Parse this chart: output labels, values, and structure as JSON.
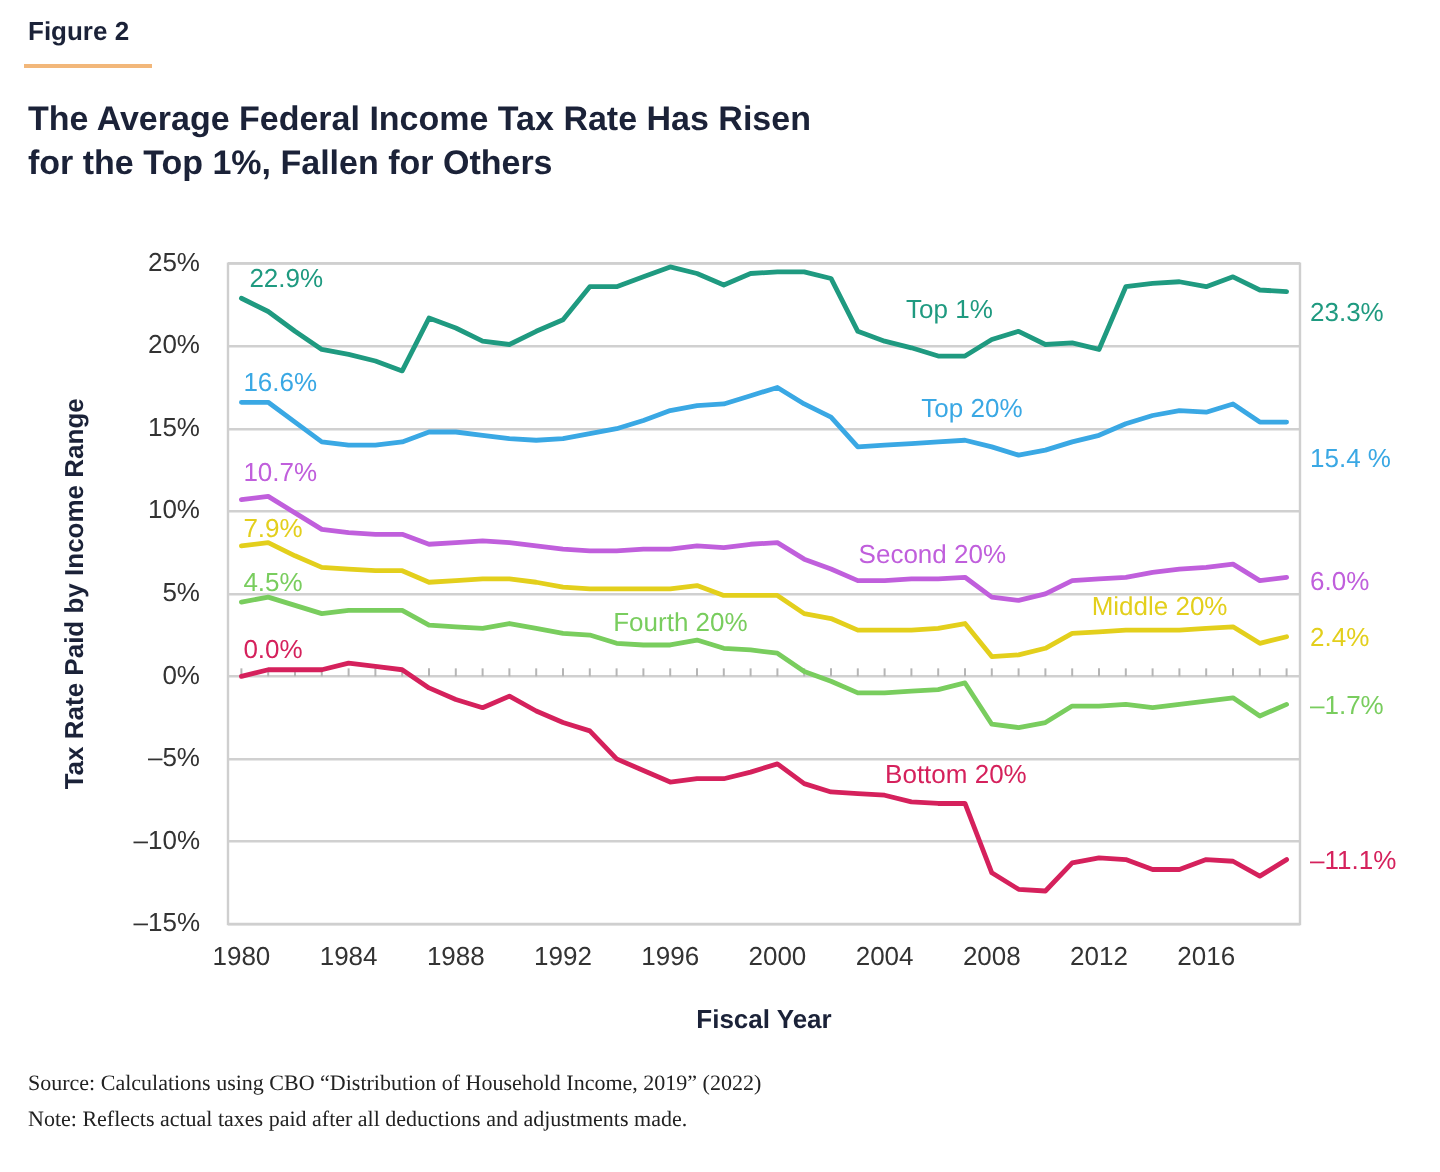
{
  "chart_data": {
    "type": "line",
    "title": "The Average Federal Income Tax Rate Has Risen for the Top 1%, Fallen for Others",
    "xlabel": "Fiscal Year",
    "ylabel": "Tax Rate Paid by Income Range",
    "annotations": [
      "Figure 2",
      "Source: Calculations using CBO “Distribution of Household Income, 2019” (2022)",
      "Note: Reflects actual taxes paid after all deductions and adjustments made."
    ],
    "x": [
      1980,
      1981,
      1982,
      1983,
      1984,
      1985,
      1986,
      1987,
      1988,
      1989,
      1990,
      1991,
      1992,
      1993,
      1994,
      1995,
      1996,
      1997,
      1998,
      1999,
      2000,
      2001,
      2002,
      2003,
      2004,
      2005,
      2006,
      2007,
      2008,
      2009,
      2010,
      2011,
      2012,
      2013,
      2014,
      2015,
      2016,
      2017,
      2018,
      2019
    ],
    "xlim": [
      1979.5,
      2019.5
    ],
    "xticks": [
      1980,
      {
        "value": 1981,
        "label": null
      },
      {
        "value": 1982,
        "label": null
      },
      {
        "value": 1983,
        "label": null
      },
      1984,
      {
        "value": 1985,
        "label": null
      },
      {
        "value": 1986,
        "label": null
      },
      {
        "value": 1987,
        "label": null
      },
      1988,
      {
        "value": 1989,
        "label": null
      },
      {
        "value": 1990,
        "label": null
      },
      {
        "value": 1991,
        "label": null
      },
      1992,
      {
        "value": 1993,
        "label": null
      },
      {
        "value": 1994,
        "label": null
      },
      {
        "value": 1995,
        "label": null
      },
      1996,
      {
        "value": 1997,
        "label": null
      },
      {
        "value": 1998,
        "label": null
      },
      {
        "value": 1999,
        "label": null
      },
      2000,
      {
        "value": 2001,
        "label": null
      },
      {
        "value": 2002,
        "label": null
      },
      {
        "value": 2003,
        "label": null
      },
      2004,
      {
        "value": 2005,
        "label": null
      },
      {
        "value": 2006,
        "label": null
      },
      {
        "value": 2007,
        "label": null
      },
      2008,
      {
        "value": 2009,
        "label": null
      },
      {
        "value": 2010,
        "label": null
      },
      {
        "value": 2011,
        "label": null
      },
      2012,
      {
        "value": 2013,
        "label": null
      },
      {
        "value": 2014,
        "label": null
      },
      {
        "value": 2015,
        "label": null
      },
      2016,
      {
        "value": 2017,
        "label": null
      },
      {
        "value": 2018,
        "label": null
      },
      {
        "value": 2019,
        "label": null
      }
    ],
    "ylim": [
      -15,
      25
    ],
    "yticks": [
      {
        "value": -15,
        "label": "–15%"
      },
      {
        "value": -10,
        "label": "–10%"
      },
      {
        "value": -5,
        "label": "–5%"
      },
      {
        "value": 0,
        "label": "0%"
      },
      {
        "value": 5,
        "label": "5%"
      },
      {
        "value": 10,
        "label": "10%"
      },
      {
        "value": 15,
        "label": "15%"
      },
      {
        "value": 20,
        "label": "20%"
      },
      {
        "value": 25,
        "label": "25%"
      }
    ],
    "grid": "y",
    "legend": false,
    "marker": "none",
    "line_style": "solid",
    "series": [
      {
        "name": "Top 1%",
        "color": "#1f9a80",
        "values": [
          22.9,
          22.1,
          20.9,
          19.8,
          19.5,
          19.1,
          18.5,
          21.7,
          21.1,
          20.3,
          20.1,
          20.9,
          21.6,
          23.6,
          23.6,
          24.2,
          24.8,
          24.4,
          23.7,
          24.4,
          24.5,
          24.5,
          24.1,
          20.9,
          20.3,
          19.9,
          19.4,
          19.4,
          20.4,
          20.9,
          20.1,
          20.2,
          19.8,
          23.6,
          23.8,
          23.9,
          23.6,
          24.2,
          23.4,
          23.3
        ],
        "value_labels": [
          "22.9%",
          null,
          null,
          null,
          null,
          null,
          null,
          null,
          null,
          null,
          null,
          null,
          null,
          null,
          null,
          null,
          null,
          null,
          null,
          null,
          null,
          null,
          null,
          null,
          null,
          null,
          null,
          null,
          null,
          null,
          null,
          null,
          null,
          null,
          null,
          null,
          null,
          null,
          null,
          "23.3%"
        ]
      },
      {
        "name": "Top 20%",
        "color": "#3aa8e4",
        "values": [
          16.6,
          16.6,
          15.4,
          14.2,
          14.0,
          14.0,
          14.2,
          14.8,
          14.8,
          14.6,
          14.4,
          14.3,
          14.4,
          14.7,
          15.0,
          15.5,
          16.1,
          16.4,
          16.5,
          17.0,
          17.5,
          16.5,
          15.7,
          13.9,
          14.0,
          14.1,
          14.2,
          14.3,
          13.9,
          13.4,
          13.7,
          14.2,
          14.6,
          15.3,
          15.8,
          16.1,
          16.0,
          16.5,
          15.4,
          15.4
        ],
        "value_labels": [
          "16.6%",
          null,
          null,
          null,
          null,
          null,
          null,
          null,
          null,
          null,
          null,
          null,
          null,
          null,
          null,
          null,
          null,
          null,
          null,
          null,
          null,
          null,
          null,
          null,
          null,
          null,
          null,
          null,
          null,
          null,
          null,
          null,
          null,
          null,
          null,
          null,
          null,
          null,
          null,
          "15.4 %"
        ]
      },
      {
        "name": "Second 20%",
        "color": "#c05fdc",
        "values": [
          10.7,
          10.9,
          9.9,
          8.9,
          8.7,
          8.6,
          8.6,
          8.0,
          8.1,
          8.2,
          8.1,
          7.9,
          7.7,
          7.6,
          7.6,
          7.7,
          7.7,
          7.9,
          7.8,
          8.0,
          8.1,
          7.1,
          6.5,
          5.8,
          5.8,
          5.9,
          5.9,
          6.0,
          4.8,
          4.6,
          5.0,
          5.8,
          5.9,
          6.0,
          6.3,
          6.5,
          6.6,
          6.8,
          5.8,
          6.0
        ],
        "value_labels": [
          "10.7%",
          null,
          null,
          null,
          null,
          null,
          null,
          null,
          null,
          null,
          null,
          null,
          null,
          null,
          null,
          null,
          null,
          null,
          null,
          null,
          null,
          null,
          null,
          null,
          null,
          null,
          null,
          null,
          null,
          null,
          null,
          null,
          null,
          null,
          null,
          null,
          null,
          null,
          null,
          "6.0%"
        ]
      },
      {
        "name": "Middle 20%",
        "color": "#e3cf1c",
        "values": [
          7.9,
          8.1,
          7.3,
          6.6,
          6.5,
          6.4,
          6.4,
          5.7,
          5.8,
          5.9,
          5.9,
          5.7,
          5.4,
          5.3,
          5.3,
          5.3,
          5.3,
          5.5,
          4.9,
          4.9,
          4.9,
          3.8,
          3.5,
          2.8,
          2.8,
          2.8,
          2.9,
          3.2,
          1.2,
          1.3,
          1.7,
          2.6,
          2.7,
          2.8,
          2.8,
          2.8,
          2.9,
          3.0,
          2.0,
          2.4
        ],
        "value_labels": [
          "7.9%",
          null,
          null,
          null,
          null,
          null,
          null,
          null,
          null,
          null,
          null,
          null,
          null,
          null,
          null,
          null,
          null,
          null,
          null,
          null,
          null,
          null,
          null,
          null,
          null,
          null,
          null,
          null,
          null,
          null,
          null,
          null,
          null,
          null,
          null,
          null,
          null,
          null,
          null,
          "2.4%"
        ]
      },
      {
        "name": "Fourth 20%",
        "color": "#79cd5e",
        "values": [
          4.5,
          4.8,
          4.3,
          3.8,
          4.0,
          4.0,
          4.0,
          3.1,
          3.0,
          2.9,
          3.2,
          2.9,
          2.6,
          2.5,
          2.0,
          1.9,
          1.9,
          2.2,
          1.7,
          1.6,
          1.4,
          0.3,
          -0.3,
          -1.0,
          -1.0,
          -0.9,
          -0.8,
          -0.4,
          -2.9,
          -3.1,
          -2.8,
          -1.8,
          -1.8,
          -1.7,
          -1.9,
          -1.7,
          -1.5,
          -1.3,
          -2.4,
          -1.7
        ],
        "value_labels": [
          "4.5%",
          null,
          null,
          null,
          null,
          null,
          null,
          null,
          null,
          null,
          null,
          null,
          null,
          null,
          null,
          null,
          null,
          null,
          null,
          null,
          null,
          null,
          null,
          null,
          null,
          null,
          null,
          null,
          null,
          null,
          null,
          null,
          null,
          null,
          null,
          null,
          null,
          null,
          null,
          "–1.7%"
        ]
      },
      {
        "name": "Bottom 20%",
        "color": "#d5215c",
        "values": [
          0.0,
          0.4,
          0.4,
          0.4,
          0.8,
          0.6,
          0.4,
          -0.7,
          -1.4,
          -1.9,
          -1.2,
          -2.1,
          -2.8,
          -3.3,
          -5.0,
          -5.7,
          -6.4,
          -6.2,
          -6.2,
          -5.8,
          -5.3,
          -6.5,
          -7.0,
          -7.1,
          -7.2,
          -7.6,
          -7.7,
          -7.7,
          -11.9,
          -12.9,
          -13.0,
          -11.3,
          -11.0,
          -11.1,
          -11.7,
          -11.7,
          -11.1,
          -11.2,
          -12.1,
          -11.1
        ],
        "value_labels": [
          "0.0%",
          null,
          null,
          null,
          null,
          null,
          null,
          null,
          null,
          null,
          null,
          null,
          null,
          null,
          null,
          null,
          null,
          null,
          null,
          null,
          null,
          null,
          null,
          null,
          null,
          null,
          null,
          null,
          null,
          null,
          null,
          null,
          null,
          null,
          null,
          null,
          null,
          null,
          null,
          "–11.1%"
        ]
      }
    ]
  }
}
